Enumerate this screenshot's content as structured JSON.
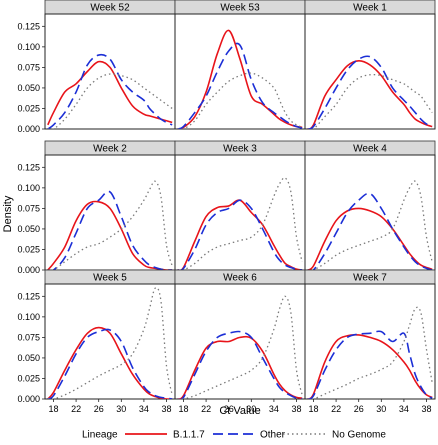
{
  "chart_data": {
    "type": "line",
    "subtype": "density-facets",
    "xlabel": "Ct Value",
    "ylabel": "Density",
    "xlim": [
      16.5,
      39.5
    ],
    "ylim": [
      0,
      0.14
    ],
    "x_ticks": [
      18,
      22,
      26,
      30,
      34,
      38
    ],
    "y_ticks": [
      0.0,
      0.025,
      0.05,
      0.075,
      0.1,
      0.125
    ],
    "y_tick_labels": [
      "0.000",
      "0.025",
      "0.050",
      "0.075",
      "0.100",
      "0.125"
    ],
    "grid": false,
    "legend": {
      "title": "Lineage",
      "placement": "bottom",
      "entries": [
        "B.1.1.7",
        "Other",
        "No Genome"
      ]
    },
    "series_styles": [
      {
        "name": "B.1.1.7",
        "color": "#e8141a",
        "dash": "solid"
      },
      {
        "name": "Other",
        "color": "#1c2fd6",
        "dash": "long-dash"
      },
      {
        "name": "No Genome",
        "color": "#7a7a7a",
        "dash": "dotted"
      }
    ],
    "x": [
      17,
      18,
      20,
      22,
      24,
      26,
      28,
      30,
      32,
      34,
      35,
      36,
      37,
      38,
      39
    ],
    "panels": [
      {
        "title": "Week 52",
        "series": [
          {
            "name": "B.1.1.7",
            "values": [
              0.005,
              0.02,
              0.045,
              0.055,
              0.07,
              0.082,
              0.075,
              0.05,
              0.028,
              0.018,
              0.016,
              0.014,
              0.012,
              0.01,
              0.008
            ]
          },
          {
            "name": "Other",
            "values": [
              0.0,
              0.005,
              0.02,
              0.045,
              0.078,
              0.09,
              0.085,
              0.06,
              0.045,
              0.035,
              0.025,
              0.018,
              0.012,
              0.008,
              0.005
            ]
          },
          {
            "name": "No Genome",
            "values": [
              0.0,
              0.0,
              0.012,
              0.03,
              0.05,
              0.062,
              0.067,
              0.065,
              0.06,
              0.05,
              0.045,
              0.04,
              0.035,
              0.03,
              0.025
            ]
          }
        ]
      },
      {
        "title": "Week 53",
        "series": [
          {
            "name": "B.1.1.7",
            "values": [
              0.0,
              0.002,
              0.015,
              0.045,
              0.092,
              0.12,
              0.085,
              0.04,
              0.03,
              0.018,
              0.012,
              0.008,
              0.005,
              0.003,
              0.002
            ]
          },
          {
            "name": "Other",
            "values": [
              0.0,
              0.003,
              0.02,
              0.04,
              0.07,
              0.095,
              0.102,
              0.06,
              0.032,
              0.02,
              0.015,
              0.01,
              0.006,
              0.003,
              0.001
            ]
          },
          {
            "name": "No Genome",
            "values": [
              0.0,
              0.0,
              0.01,
              0.03,
              0.045,
              0.058,
              0.065,
              0.068,
              0.062,
              0.05,
              0.035,
              0.02,
              0.01,
              0.005,
              0.002
            ]
          }
        ]
      },
      {
        "title": "Week 1",
        "series": [
          {
            "name": "B.1.1.7",
            "values": [
              0.0,
              0.005,
              0.04,
              0.06,
              0.077,
              0.083,
              0.078,
              0.065,
              0.045,
              0.03,
              0.02,
              0.012,
              0.008,
              0.005,
              0.003
            ]
          },
          {
            "name": "Other",
            "values": [
              0.0,
              0.003,
              0.025,
              0.05,
              0.072,
              0.085,
              0.088,
              0.075,
              0.05,
              0.035,
              0.028,
              0.02,
              0.012,
              0.006,
              0.003
            ]
          },
          {
            "name": "No Genome",
            "values": [
              0.0,
              0.0,
              0.015,
              0.03,
              0.05,
              0.062,
              0.066,
              0.065,
              0.06,
              0.055,
              0.05,
              0.045,
              0.04,
              0.03,
              0.02
            ]
          }
        ]
      },
      {
        "title": "Week 2",
        "series": [
          {
            "name": "B.1.1.7",
            "values": [
              0.0,
              0.008,
              0.028,
              0.06,
              0.08,
              0.083,
              0.075,
              0.05,
              0.02,
              0.006,
              0.003,
              0.002,
              0.001,
              0.0,
              0.0
            ]
          },
          {
            "name": "Other",
            "values": [
              0.0,
              0.0,
              0.015,
              0.045,
              0.075,
              0.085,
              0.095,
              0.065,
              0.03,
              0.012,
              0.006,
              0.003,
              0.001,
              0.0,
              0.0
            ]
          },
          {
            "name": "No Genome",
            "values": [
              0.0,
              0.0,
              0.01,
              0.02,
              0.028,
              0.032,
              0.04,
              0.05,
              0.065,
              0.085,
              0.098,
              0.108,
              0.09,
              0.03,
              0.005
            ]
          }
        ]
      },
      {
        "title": "Week 3",
        "series": [
          {
            "name": "B.1.1.7",
            "values": [
              0.0,
              0.003,
              0.035,
              0.065,
              0.076,
              0.078,
              0.085,
              0.07,
              0.055,
              0.03,
              0.018,
              0.008,
              0.004,
              0.001,
              0.0
            ]
          },
          {
            "name": "Other",
            "values": [
              0.0,
              0.002,
              0.025,
              0.055,
              0.07,
              0.075,
              0.085,
              0.075,
              0.05,
              0.022,
              0.012,
              0.006,
              0.003,
              0.001,
              0.0
            ]
          },
          {
            "name": "No Genome",
            "values": [
              0.0,
              0.0,
              0.008,
              0.02,
              0.028,
              0.032,
              0.036,
              0.04,
              0.055,
              0.09,
              0.105,
              0.112,
              0.095,
              0.04,
              0.01
            ]
          }
        ]
      },
      {
        "title": "Week 4",
        "series": [
          {
            "name": "B.1.1.7",
            "values": [
              0.0,
              0.005,
              0.035,
              0.06,
              0.072,
              0.075,
              0.072,
              0.065,
              0.05,
              0.03,
              0.02,
              0.012,
              0.006,
              0.003,
              0.001
            ]
          },
          {
            "name": "Other",
            "values": [
              0.0,
              0.0,
              0.02,
              0.045,
              0.07,
              0.085,
              0.093,
              0.075,
              0.05,
              0.028,
              0.018,
              0.01,
              0.005,
              0.002,
              0.0
            ]
          },
          {
            "name": "No Genome",
            "values": [
              0.0,
              0.0,
              0.008,
              0.018,
              0.025,
              0.03,
              0.035,
              0.04,
              0.05,
              0.085,
              0.1,
              0.108,
              0.09,
              0.04,
              0.01
            ]
          }
        ]
      },
      {
        "title": "Week 5",
        "series": [
          {
            "name": "B.1.1.7",
            "values": [
              0.0,
              0.008,
              0.035,
              0.06,
              0.08,
              0.087,
              0.08,
              0.055,
              0.03,
              0.012,
              0.006,
              0.003,
              0.001,
              0.0,
              0.0
            ]
          },
          {
            "name": "Other",
            "values": [
              0.0,
              0.004,
              0.028,
              0.055,
              0.075,
              0.082,
              0.084,
              0.07,
              0.038,
              0.015,
              0.008,
              0.004,
              0.002,
              0.001,
              0.0
            ]
          },
          {
            "name": "No Genome",
            "values": [
              0.0,
              0.0,
              0.005,
              0.012,
              0.02,
              0.028,
              0.035,
              0.042,
              0.055,
              0.085,
              0.11,
              0.135,
              0.12,
              0.04,
              0.005
            ]
          }
        ]
      },
      {
        "title": "Week 6",
        "series": [
          {
            "name": "B.1.1.7",
            "values": [
              0.0,
              0.004,
              0.035,
              0.062,
              0.07,
              0.07,
              0.075,
              0.074,
              0.058,
              0.03,
              0.018,
              0.01,
              0.005,
              0.002,
              0.001
            ]
          },
          {
            "name": "Other",
            "values": [
              0.0,
              0.002,
              0.03,
              0.058,
              0.075,
              0.08,
              0.082,
              0.075,
              0.05,
              0.025,
              0.014,
              0.008,
              0.004,
              0.001,
              0.0
            ]
          },
          {
            "name": "No Genome",
            "values": [
              0.0,
              0.0,
              0.004,
              0.01,
              0.016,
              0.022,
              0.028,
              0.035,
              0.05,
              0.085,
              0.11,
              0.125,
              0.105,
              0.035,
              0.005
            ]
          }
        ]
      },
      {
        "title": "Week 7",
        "series": [
          {
            "name": "B.1.1.7",
            "values": [
              0.0,
              0.006,
              0.045,
              0.07,
              0.077,
              0.078,
              0.075,
              0.07,
              0.06,
              0.045,
              0.035,
              0.022,
              0.012,
              0.005,
              0.002
            ]
          },
          {
            "name": "Other",
            "values": [
              0.0,
              0.004,
              0.035,
              0.06,
              0.075,
              0.079,
              0.08,
              0.082,
              0.07,
              0.08,
              0.055,
              0.03,
              0.015,
              0.005,
              0.001
            ]
          },
          {
            "name": "No Genome",
            "values": [
              0.0,
              0.0,
              0.006,
              0.012,
              0.018,
              0.025,
              0.03,
              0.036,
              0.045,
              0.07,
              0.09,
              0.11,
              0.105,
              0.06,
              0.02
            ]
          }
        ]
      }
    ]
  }
}
